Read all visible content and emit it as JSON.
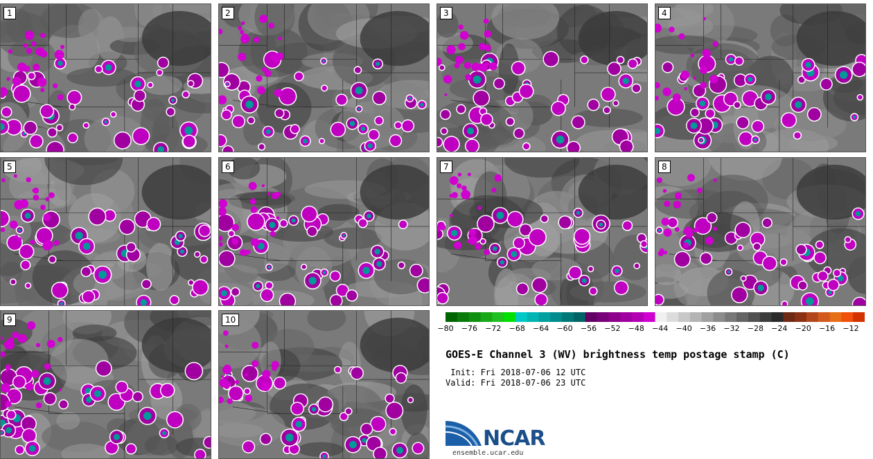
{
  "panels": [
    {
      "label": "1"
    },
    {
      "label": "2"
    },
    {
      "label": "3"
    },
    {
      "label": "4"
    },
    {
      "label": "5"
    },
    {
      "label": "6"
    },
    {
      "label": "7"
    },
    {
      "label": "8"
    },
    {
      "label": "9"
    },
    {
      "label": "10"
    }
  ],
  "colorbar": {
    "ticks": [
      "−80",
      "−76",
      "−72",
      "−68",
      "−64",
      "−60",
      "−56",
      "−52",
      "−48",
      "−44",
      "−40",
      "−36",
      "−32",
      "−28",
      "−24",
      "−20",
      "−16",
      "−12"
    ],
    "colors": [
      "#006400",
      "#0a7a0a",
      "#109010",
      "#18a818",
      "#20c020",
      "#00e000",
      "#00c8c8",
      "#00b4b4",
      "#00a0a0",
      "#008c8c",
      "#007878",
      "#006464",
      "#640064",
      "#780078",
      "#8c008c",
      "#a000a0",
      "#b400b4",
      "#d000d0",
      "#f0f0f0",
      "#dcdcdc",
      "#c8c8c8",
      "#b4b4b4",
      "#a0a0a0",
      "#8c8c8c",
      "#787878",
      "#646464",
      "#505050",
      "#3c3c3c",
      "#2a2a2a",
      "#6e2a14",
      "#8c3214",
      "#b4461e",
      "#d25a1e",
      "#e66e14",
      "#f0500a",
      "#d23200"
    ]
  },
  "title": "GOES-E Channel 3 (WV) brightness temp postage stamp (C)",
  "init": " Init: Fri 2018-07-06 12 UTC",
  "valid": "Valid: Fri 2018-07-06 23 UTC",
  "logo": {
    "text": "NCAR",
    "site": "ensemble.ucar.edu"
  }
}
